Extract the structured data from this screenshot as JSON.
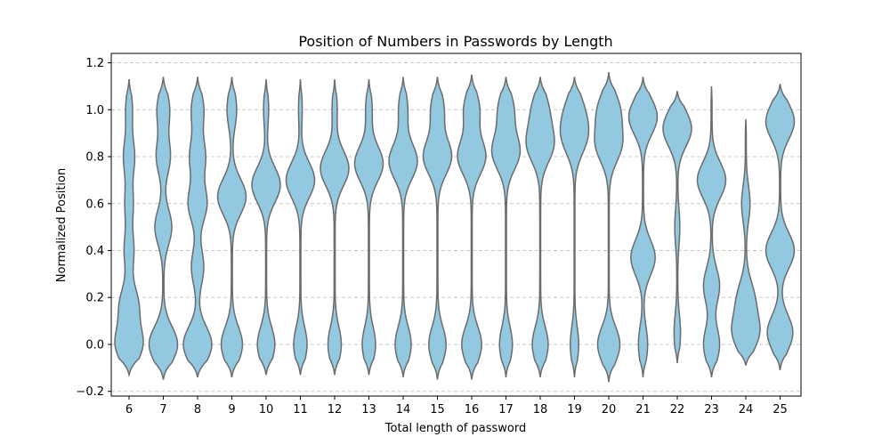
{
  "chart_data": {
    "type": "violin",
    "title": "Position of Numbers in Passwords by Length",
    "xlabel": "Total length of password",
    "ylabel": "Normalized Position",
    "ylim": [
      -0.22,
      1.24
    ],
    "yticks": [
      -0.2,
      0.0,
      0.2,
      0.4,
      0.6,
      0.8,
      1.0,
      1.2
    ],
    "ytick_labels": [
      "−0.2",
      "0.0",
      "0.2",
      "0.4",
      "0.6",
      "0.8",
      "1.0",
      "1.2"
    ],
    "grid": "y-dashed",
    "fill_color": "#92c9e1",
    "edge_color": "#6b6b6b",
    "categories": [
      "6",
      "7",
      "8",
      "9",
      "10",
      "11",
      "12",
      "13",
      "14",
      "15",
      "16",
      "17",
      "18",
      "19",
      "20",
      "21",
      "22",
      "23",
      "24",
      "25"
    ],
    "violins": [
      {
        "x": "6",
        "min": -0.13,
        "max": 1.13,
        "peaks": [
          [
            0.0,
            0.9
          ],
          [
            0.17,
            0.6
          ],
          [
            0.4,
            0.3
          ],
          [
            0.6,
            0.25
          ],
          [
            0.8,
            0.35
          ],
          [
            1.0,
            0.2
          ]
        ]
      },
      {
        "x": "7",
        "min": -0.15,
        "max": 1.14,
        "peaks": [
          [
            0.0,
            0.95
          ],
          [
            0.5,
            0.55
          ],
          [
            0.8,
            0.45
          ],
          [
            1.0,
            0.4
          ]
        ]
      },
      {
        "x": "8",
        "min": -0.14,
        "max": 1.14,
        "peaks": [
          [
            0.0,
            0.85
          ],
          [
            0.33,
            0.35
          ],
          [
            0.6,
            0.55
          ],
          [
            0.8,
            0.45
          ],
          [
            1.0,
            0.35
          ]
        ]
      },
      {
        "x": "9",
        "min": -0.14,
        "max": 1.14,
        "peaks": [
          [
            0.0,
            0.7
          ],
          [
            0.63,
            0.95
          ],
          [
            1.0,
            0.3
          ]
        ]
      },
      {
        "x": "10",
        "min": -0.13,
        "max": 1.13,
        "peaks": [
          [
            0.0,
            0.6
          ],
          [
            0.68,
            1.0
          ],
          [
            1.0,
            0.15
          ]
        ]
      },
      {
        "x": "11",
        "min": -0.13,
        "max": 1.13,
        "peaks": [
          [
            0.0,
            0.45
          ],
          [
            0.7,
            1.0
          ],
          [
            1.0,
            0.1
          ]
        ]
      },
      {
        "x": "12",
        "min": -0.13,
        "max": 1.13,
        "peaks": [
          [
            0.0,
            0.45
          ],
          [
            0.75,
            1.0
          ],
          [
            1.0,
            0.15
          ]
        ]
      },
      {
        "x": "13",
        "min": -0.13,
        "max": 1.13,
        "peaks": [
          [
            0.0,
            0.45
          ],
          [
            0.77,
            1.0
          ],
          [
            1.0,
            0.2
          ]
        ]
      },
      {
        "x": "14",
        "min": -0.14,
        "max": 1.14,
        "peaks": [
          [
            0.0,
            0.55
          ],
          [
            0.78,
            1.0
          ],
          [
            1.0,
            0.3
          ]
        ]
      },
      {
        "x": "15",
        "min": -0.15,
        "max": 1.14,
        "peaks": [
          [
            0.0,
            0.6
          ],
          [
            0.8,
            1.0
          ],
          [
            1.0,
            0.45
          ]
        ]
      },
      {
        "x": "16",
        "min": -0.15,
        "max": 1.15,
        "peaks": [
          [
            0.0,
            0.7
          ],
          [
            0.8,
            1.0
          ],
          [
            1.0,
            0.55
          ]
        ]
      },
      {
        "x": "17",
        "min": -0.14,
        "max": 1.14,
        "peaks": [
          [
            0.0,
            0.45
          ],
          [
            0.82,
            1.0
          ],
          [
            1.0,
            0.55
          ]
        ]
      },
      {
        "x": "18",
        "min": -0.14,
        "max": 1.14,
        "peaks": [
          [
            0.0,
            0.6
          ],
          [
            0.85,
            1.0
          ],
          [
            1.0,
            0.6
          ]
        ]
      },
      {
        "x": "19",
        "min": -0.14,
        "max": 1.14,
        "peaks": [
          [
            0.0,
            0.35
          ],
          [
            0.88,
            1.0
          ],
          [
            1.0,
            0.7
          ]
        ]
      },
      {
        "x": "20",
        "min": -0.16,
        "max": 1.16,
        "peaks": [
          [
            0.0,
            0.9
          ],
          [
            0.85,
            1.0
          ],
          [
            1.0,
            0.85
          ]
        ]
      },
      {
        "x": "21",
        "min": -0.14,
        "max": 1.14,
        "peaks": [
          [
            0.0,
            0.3
          ],
          [
            0.37,
            0.85
          ],
          [
            0.97,
            1.0
          ]
        ]
      },
      {
        "x": "22",
        "min": -0.08,
        "max": 1.08,
        "peaks": [
          [
            0.05,
            0.2
          ],
          [
            0.5,
            0.15
          ],
          [
            0.92,
            1.0
          ]
        ]
      },
      {
        "x": "23",
        "min": -0.14,
        "max": 1.1,
        "peaks": [
          [
            0.0,
            0.55
          ],
          [
            0.25,
            0.55
          ],
          [
            0.7,
            1.0
          ]
        ]
      },
      {
        "x": "24",
        "min": -0.09,
        "max": 0.96,
        "peaks": [
          [
            0.05,
            1.0
          ],
          [
            0.2,
            0.6
          ],
          [
            0.6,
            0.3
          ]
        ]
      },
      {
        "x": "25",
        "min": -0.11,
        "max": 1.11,
        "peaks": [
          [
            0.05,
            0.85
          ],
          [
            0.4,
            0.95
          ],
          [
            0.95,
            0.95
          ]
        ]
      }
    ]
  }
}
